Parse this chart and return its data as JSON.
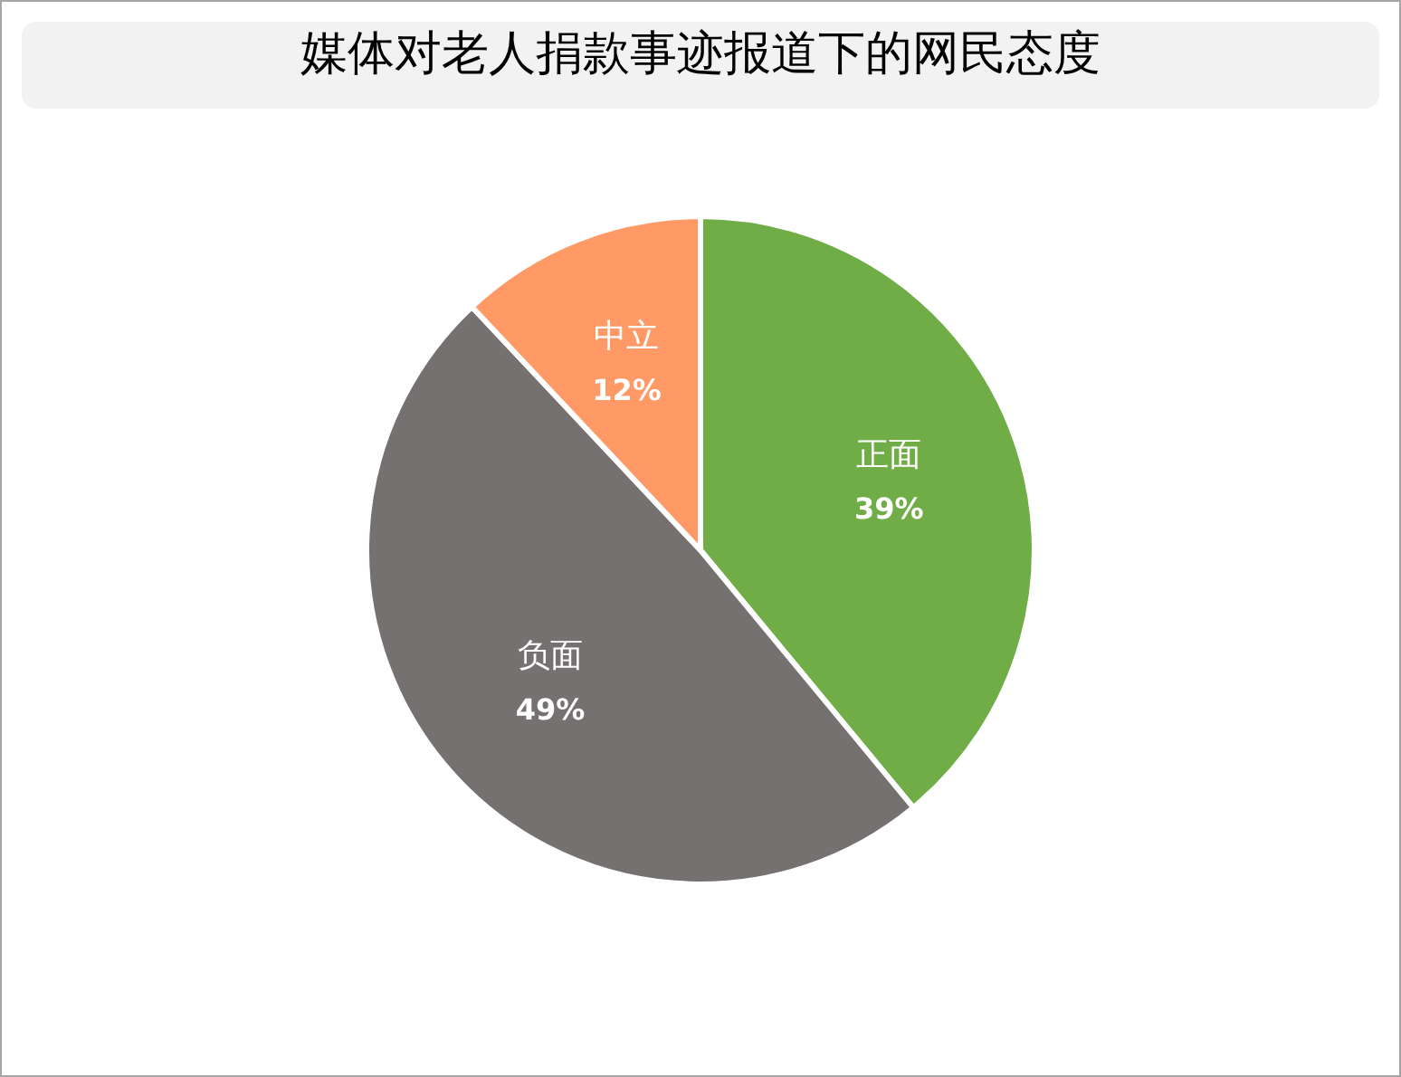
{
  "chart_data": {
    "type": "pie",
    "title": "媒体对老人捐款事迹报道下的网民态度",
    "categories": [
      "正面",
      "负面",
      "中立"
    ],
    "values": [
      39,
      49,
      12
    ],
    "value_labels": [
      "39%",
      "49%",
      "12%"
    ],
    "colors": [
      "#70ad47",
      "#767171",
      "#ff9966"
    ],
    "legend": false
  }
}
